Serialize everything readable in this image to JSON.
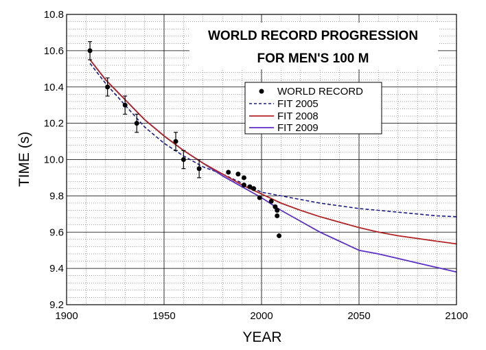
{
  "chart_data": {
    "type": "line",
    "title_lines": [
      "WORLD RECORD PROGRESSION",
      "FOR MEN'S 100 M"
    ],
    "xlabel": "YEAR",
    "ylabel": "TIME (s)",
    "xlim": [
      1900,
      2100
    ],
    "ylim": [
      9.2,
      10.8
    ],
    "x_ticks": [
      "1900",
      "1950",
      "2000",
      "2050",
      "2100"
    ],
    "x_tick_values": [
      1900,
      1950,
      2000,
      2050,
      2100
    ],
    "y_ticks": [
      "9.2",
      "9.4",
      "9.6",
      "9.8",
      "10.0",
      "10.2",
      "10.4",
      "10.6",
      "10.8"
    ],
    "y_tick_values": [
      9.2,
      9.4,
      9.6,
      9.8,
      10.0,
      10.2,
      10.4,
      10.6,
      10.8
    ],
    "grid": true,
    "legend_position": "upper-center",
    "series": [
      {
        "name": "WORLD RECORD",
        "kind": "scatter",
        "color": "#000000",
        "points": [
          {
            "x": 1912,
            "y": 10.6,
            "err": 0.05
          },
          {
            "x": 1921,
            "y": 10.4,
            "err": 0.05
          },
          {
            "x": 1930,
            "y": 10.3,
            "err": 0.05
          },
          {
            "x": 1936,
            "y": 10.2,
            "err": 0.05
          },
          {
            "x": 1956,
            "y": 10.1,
            "err": 0.05
          },
          {
            "x": 1960,
            "y": 10.0,
            "err": 0.05
          },
          {
            "x": 1968,
            "y": 9.95,
            "err": 0.05
          },
          {
            "x": 1983,
            "y": 9.93
          },
          {
            "x": 1988,
            "y": 9.92
          },
          {
            "x": 1991,
            "y": 9.9
          },
          {
            "x": 1991,
            "y": 9.86
          },
          {
            "x": 1994,
            "y": 9.85
          },
          {
            "x": 1996,
            "y": 9.84
          },
          {
            "x": 1999,
            "y": 9.79
          },
          {
            "x": 2005,
            "y": 9.77
          },
          {
            "x": 2007,
            "y": 9.74
          },
          {
            "x": 2008,
            "y": 9.72
          },
          {
            "x": 2008,
            "y": 9.69
          },
          {
            "x": 2009,
            "y": 9.58
          }
        ]
      },
      {
        "name": "FIT 2005",
        "kind": "line",
        "style": "dashed",
        "color": "#1a1a8c",
        "x": [
          1912,
          1920,
          1930,
          1940,
          1950,
          1960,
          1970,
          1980,
          1990,
          2000,
          2010,
          2020,
          2030,
          2040,
          2050,
          2060,
          2070,
          2080,
          2090,
          2100
        ],
        "y": [
          10.53,
          10.42,
          10.3,
          10.18,
          10.09,
          10.02,
          9.96,
          9.92,
          9.87,
          9.82,
          9.8,
          9.78,
          9.76,
          9.745,
          9.73,
          9.72,
          9.71,
          9.7,
          9.69,
          9.685
        ]
      },
      {
        "name": "FIT 2008",
        "kind": "line",
        "style": "solid",
        "color": "#b22222",
        "x": [
          1912,
          1920,
          1930,
          1940,
          1950,
          1960,
          1970,
          1980,
          1990,
          2000,
          2010,
          2020,
          2030,
          2040,
          2050,
          2060,
          2070,
          2080,
          2090,
          2100
        ],
        "y": [
          10.55,
          10.44,
          10.33,
          10.22,
          10.13,
          10.05,
          9.98,
          9.92,
          9.86,
          9.81,
          9.76,
          9.72,
          9.685,
          9.655,
          9.625,
          9.6,
          9.58,
          9.565,
          9.55,
          9.535
        ]
      },
      {
        "name": "FIT 2009",
        "kind": "line",
        "style": "solid",
        "color": "#5a2ec8",
        "x": [
          1912,
          1920,
          1930,
          1940,
          1950,
          1960,
          1970,
          1980,
          1990,
          2000,
          2010,
          2020,
          2030,
          2040,
          2050,
          2060,
          2070,
          2080,
          2090,
          2100
        ],
        "y": [
          10.55,
          10.44,
          10.33,
          10.22,
          10.13,
          10.05,
          9.98,
          9.91,
          9.85,
          9.79,
          9.72,
          9.66,
          9.6,
          9.55,
          9.5,
          9.48,
          9.455,
          9.43,
          9.405,
          9.38
        ]
      }
    ]
  }
}
